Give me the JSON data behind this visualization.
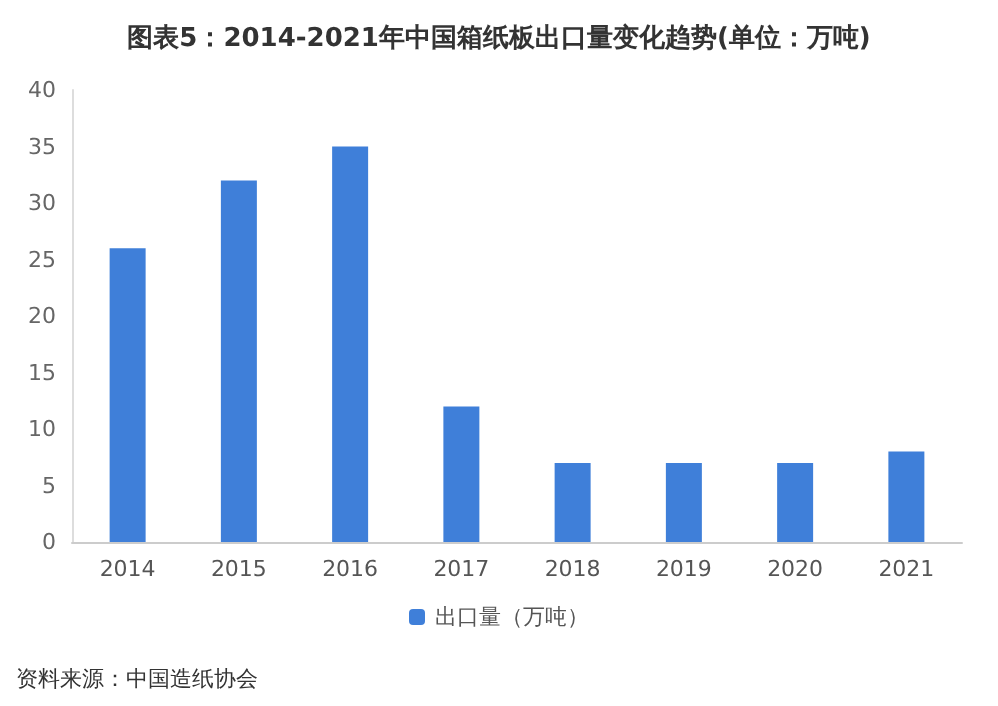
{
  "chart_data": {
    "type": "bar",
    "title": "图表5：2014-2021年中国箱纸板出口量变化趋势(单位：万吨)",
    "categories": [
      "2014",
      "2015",
      "2016",
      "2017",
      "2018",
      "2019",
      "2020",
      "2021"
    ],
    "series": [
      {
        "name": "出口量（万吨）",
        "color": "#3f7fd9",
        "values": [
          26,
          32,
          35,
          12,
          7,
          7,
          7,
          8
        ]
      }
    ],
    "ylim": [
      0,
      40
    ],
    "yticks": [
      0,
      5,
      10,
      15,
      20,
      25,
      30,
      35,
      40
    ],
    "grid": false,
    "legend": "bottom",
    "annotations": [
      "资料来源：中国造纸协会"
    ]
  }
}
